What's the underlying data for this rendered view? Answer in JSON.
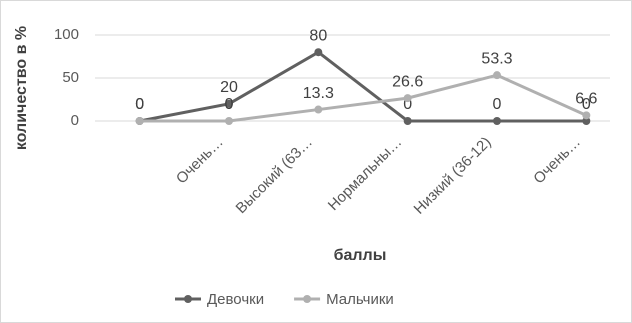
{
  "chart_data": {
    "type": "line",
    "x_label": "баллы",
    "y_label": "количество в %",
    "categories": [
      null,
      "Очень…",
      "Высокий (63…",
      "Нормальны…",
      "Низкий (36-12)",
      "Очень…"
    ],
    "series": [
      {
        "name": "Девочки",
        "color": "#606060",
        "values": [
          0,
          20,
          80,
          0,
          0,
          0
        ]
      },
      {
        "name": "Мальчики",
        "color": "#b0b0b0",
        "values": [
          0,
          0,
          13.3,
          26.6,
          53.3,
          6.6
        ]
      }
    ],
    "ylim": [
      0,
      100
    ],
    "yticks": [
      0,
      50,
      100
    ],
    "grid": true,
    "legend": "bottom"
  }
}
